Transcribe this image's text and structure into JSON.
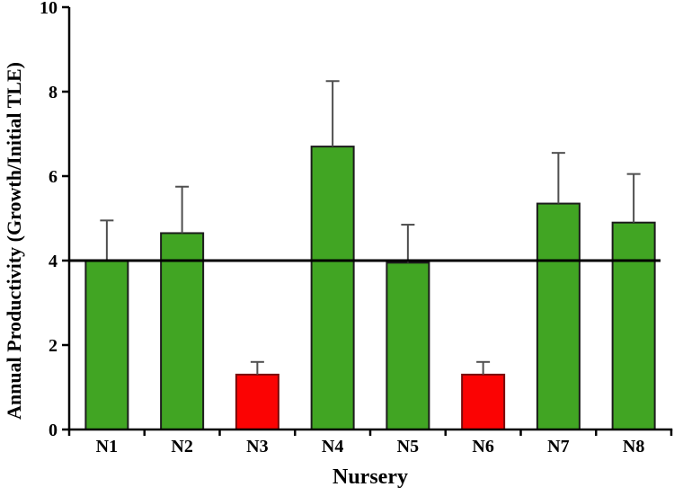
{
  "chart_data": {
    "type": "bar",
    "title": "",
    "xlabel": "Nursery",
    "ylabel": "Annual Productivity (Growth/Initial TLE)",
    "categories": [
      "N1",
      "N2",
      "N3",
      "N4",
      "N5",
      "N6",
      "N7",
      "N8"
    ],
    "values": [
      4.0,
      4.65,
      1.3,
      6.7,
      3.95,
      1.3,
      5.35,
      4.9
    ],
    "error_upper": [
      0.95,
      1.1,
      0.3,
      1.55,
      0.9,
      0.3,
      1.2,
      1.15
    ],
    "bar_colors": [
      "green",
      "green",
      "red",
      "green",
      "green",
      "red",
      "green",
      "green"
    ],
    "reference_line": {
      "y": 4.0,
      "color": "#000000"
    },
    "ylim": [
      0,
      10
    ],
    "yticks": [
      0,
      2,
      4,
      6,
      8,
      10
    ],
    "grid": false,
    "legend": null,
    "legend_position": null,
    "palette": {
      "green_fill": "#41A523",
      "green_border": "#1C1C1C",
      "red_fill": "#FB0303",
      "red_border": "#7A0A0A",
      "error_bar": "#4F4F4F",
      "axis": "#000000"
    }
  }
}
